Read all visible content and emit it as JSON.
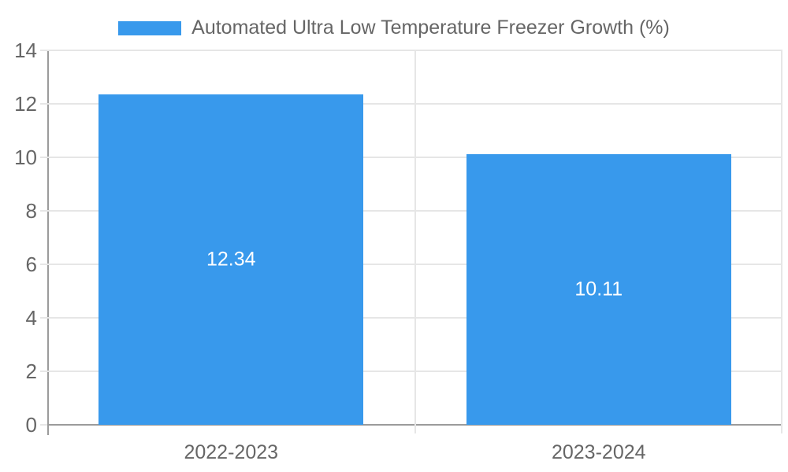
{
  "chart_data": {
    "type": "bar",
    "title": "",
    "legend": {
      "label": "Automated Ultra Low Temperature Freezer Growth (%)",
      "position": "top"
    },
    "categories": [
      "2022-2023",
      "2023-2024"
    ],
    "values": [
      12.34,
      10.11
    ],
    "value_labels": [
      "12.34",
      "10.11"
    ],
    "ylim": [
      0,
      14
    ],
    "yticks": [
      0,
      2,
      4,
      6,
      8,
      10,
      12,
      14
    ],
    "grid": true,
    "colors": {
      "bar": "#3899ec",
      "grid": "#e6e6e6",
      "axis": "#9b9b9b",
      "tick_text": "#666666",
      "bar_label_text": "#ffffff",
      "background": "#ffffff"
    }
  }
}
